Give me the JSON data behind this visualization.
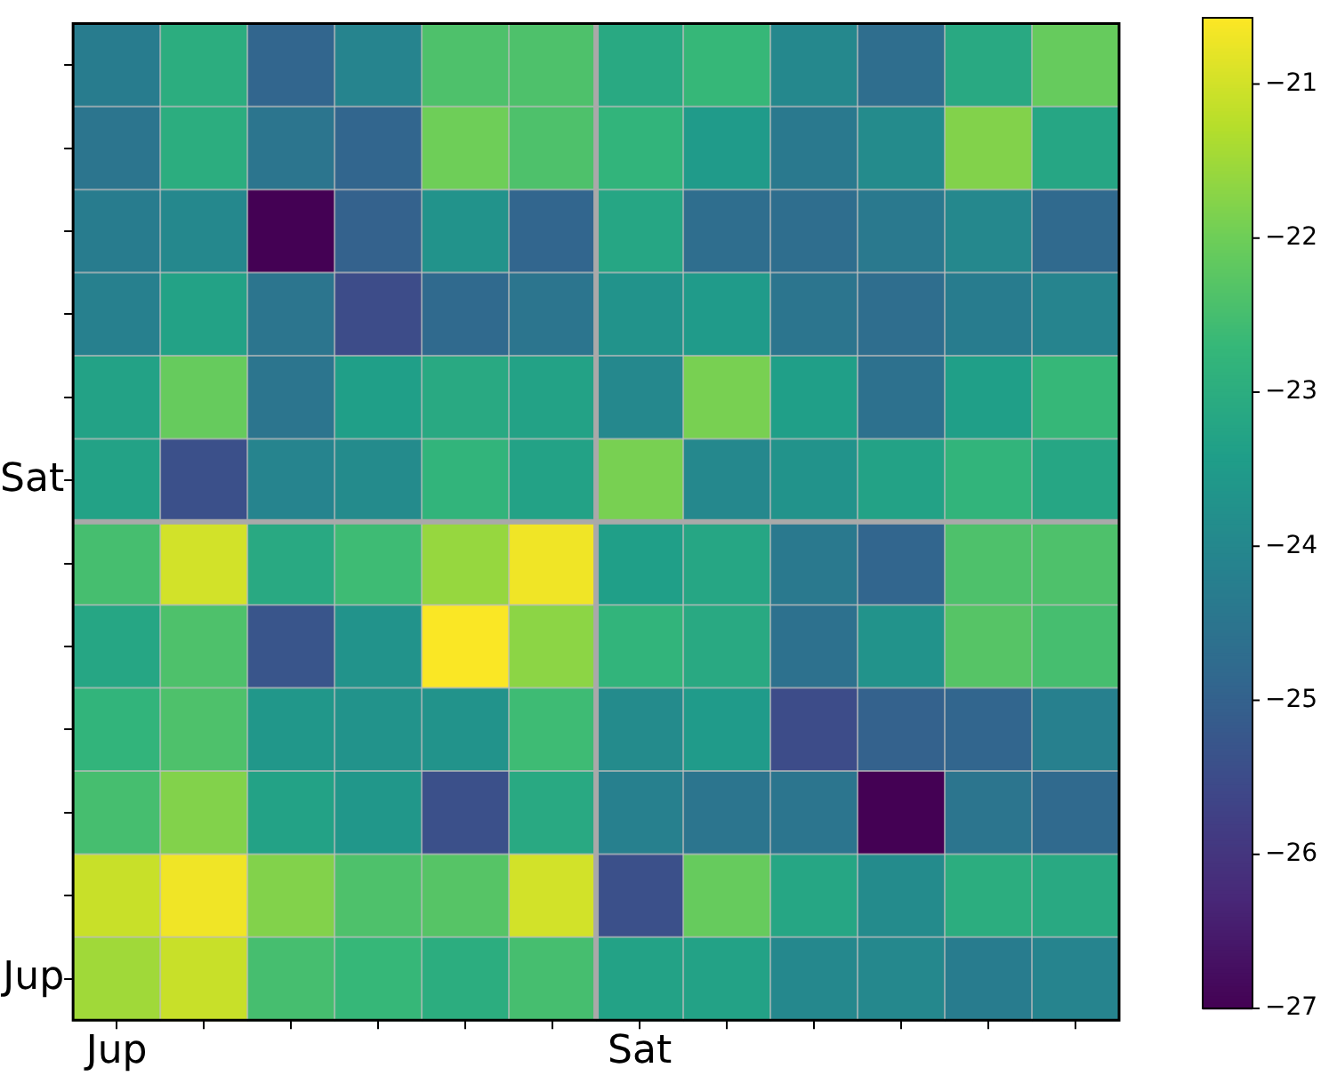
{
  "chart_data": {
    "type": "heatmap",
    "categories": [
      "Jup",
      null,
      null,
      null,
      null,
      null,
      "Sat",
      null,
      null,
      null,
      null,
      null
    ],
    "y_categories": [
      null,
      null,
      null,
      null,
      null,
      "Sat",
      null,
      null,
      null,
      null,
      null,
      "Jup"
    ],
    "cells": [
      [
        -24.3,
        -23.0,
        -24.9,
        -24.1,
        -22.4,
        -22.4,
        -23.1,
        -22.7,
        -24.0,
        -24.7,
        -23.1,
        -22.1
      ],
      [
        -24.5,
        -23.0,
        -24.5,
        -24.9,
        -22.0,
        -22.4,
        -22.8,
        -23.5,
        -24.4,
        -23.9,
        -21.8,
        -23.2
      ],
      [
        -24.3,
        -24.0,
        -27.0,
        -25.0,
        -23.7,
        -24.9,
        -23.2,
        -24.7,
        -24.7,
        -24.4,
        -24.0,
        -24.8
      ],
      [
        -24.2,
        -23.3,
        -24.5,
        -25.5,
        -24.8,
        -24.5,
        -23.7,
        -23.5,
        -24.5,
        -24.7,
        -24.3,
        -24.1
      ],
      [
        -23.3,
        -22.1,
        -24.5,
        -23.4,
        -23.1,
        -23.3,
        -24.0,
        -21.9,
        -23.4,
        -24.6,
        -23.4,
        -22.7
      ],
      [
        -23.3,
        -25.4,
        -24.1,
        -23.9,
        -22.8,
        -23.3,
        -21.9,
        -24.0,
        -23.7,
        -23.3,
        -22.8,
        -23.2
      ],
      [
        -22.5,
        -21.0,
        -23.1,
        -22.6,
        -21.6,
        -20.7,
        -23.4,
        -23.2,
        -24.4,
        -24.9,
        -22.4,
        -22.4
      ],
      [
        -23.2,
        -22.4,
        -25.3,
        -23.7,
        -20.6,
        -21.7,
        -22.8,
        -23.1,
        -24.6,
        -23.7,
        -22.3,
        -22.5
      ],
      [
        -22.8,
        -22.4,
        -23.6,
        -23.7,
        -23.7,
        -22.6,
        -23.9,
        -23.5,
        -25.5,
        -25.0,
        -24.9,
        -24.2
      ],
      [
        -22.5,
        -21.8,
        -23.3,
        -23.6,
        -25.4,
        -23.1,
        -24.2,
        -24.5,
        -24.5,
        -27.0,
        -24.5,
        -24.8
      ],
      [
        -21.1,
        -20.7,
        -21.8,
        -22.4,
        -22.3,
        -21.0,
        -25.4,
        -22.1,
        -23.2,
        -23.9,
        -23.0,
        -23.1
      ],
      [
        -21.5,
        -21.1,
        -22.5,
        -22.7,
        -23.0,
        -22.5,
        -23.3,
        -23.3,
        -24.0,
        -24.0,
        -24.3,
        -24.1
      ]
    ],
    "clim": [
      -27,
      -20.57
    ],
    "cticks": [
      -27,
      -26,
      -25,
      -24,
      -23,
      -22,
      -21
    ],
    "grid": true
  }
}
